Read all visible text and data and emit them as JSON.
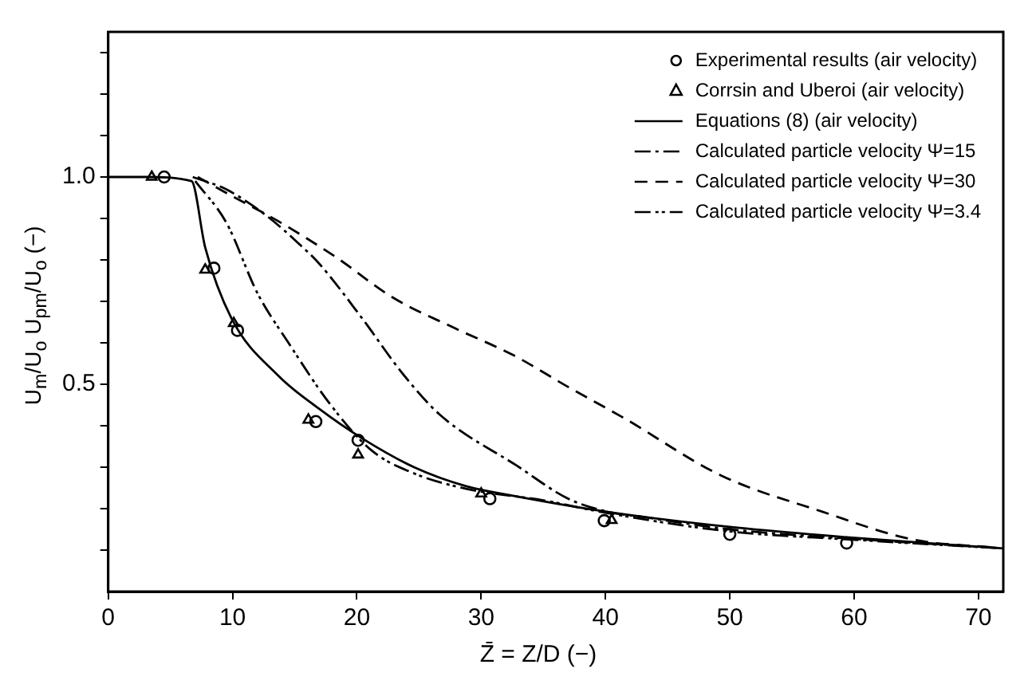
{
  "chart_data": {
    "type": "line",
    "xlabel": "Z̄ = Z/D (−)",
    "ylabel": "U$_{m}$/U$_{o}$   U$_{pm}$/U$_{o}$ (−)",
    "xlim": [
      0,
      72
    ],
    "xticks": [
      0,
      10,
      20,
      30,
      40,
      50,
      60,
      70
    ],
    "ylim": [
      0,
      1.35
    ],
    "yticks": [
      {
        "value": 0.1,
        "label": null
      },
      {
        "value": 0.2,
        "label": null
      },
      {
        "value": 0.3,
        "label": null
      },
      {
        "value": 0.4,
        "label": null
      },
      0.5,
      {
        "value": 0.6,
        "label": null
      },
      {
        "value": 0.7,
        "label": null
      },
      {
        "value": 0.8,
        "label": null
      },
      {
        "value": 0.9,
        "label": null
      },
      {
        "value": 1,
        "label": "1.0"
      },
      {
        "value": 1.1,
        "label": null
      },
      {
        "value": 1.2,
        "label": null
      },
      {
        "value": 1.3,
        "label": null
      }
    ],
    "grid": false,
    "legend": "top right",
    "series": [
      {
        "name": "Experimental results (air velocity)",
        "type": "scatter",
        "marker": "circle",
        "color": "#000000",
        "x": [
          4.5,
          8.5,
          10.4,
          16.7,
          20.1,
          30.7,
          39.9,
          50,
          59.4
        ],
        "values": [
          1.0,
          0.78,
          0.63,
          0.41,
          0.365,
          0.224,
          0.171,
          0.138,
          0.117
        ]
      },
      {
        "name": "Corrsin and Uberoi (air velocity)",
        "type": "scatter",
        "marker": "triangle",
        "color": "#000000",
        "x": [
          3.5,
          7.8,
          10.1,
          16.1,
          20.1,
          30,
          40.5
        ],
        "values": [
          1.0,
          0.776,
          0.647,
          0.414,
          0.33,
          0.236,
          0.172
        ]
      },
      {
        "name": "Equations (8) (air velocity)",
        "line_style": "solid",
        "color": "#000000",
        "x": [
          0,
          3,
          6.7,
          7.8,
          9.9,
          13.7,
          17,
          20.4,
          24.6,
          28.8,
          32.4,
          40,
          50,
          59.4,
          72
        ],
        "values": [
          1.0,
          1.0,
          0.99,
          0.83,
          0.66,
          0.52,
          0.44,
          0.37,
          0.3,
          0.254,
          0.232,
          0.193,
          0.156,
          0.131,
          0.104
        ]
      },
      {
        "name": "Calculated particle velocity Ψ=15",
        "line_style": "dashdot",
        "color": "#000000",
        "x": [
          6.8,
          9.5,
          12.8,
          15.3,
          17,
          20.4,
          23.7,
          26.7,
          32.9,
          37,
          40.1,
          43,
          50,
          60,
          71.6
        ],
        "values": [
          1.0,
          0.97,
          0.905,
          0.84,
          0.79,
          0.66,
          0.525,
          0.426,
          0.303,
          0.224,
          0.193,
          0.18,
          0.15,
          0.127,
          0.105
        ]
      },
      {
        "name": "Calculated particle velocity Ψ=30",
        "line_style": "dashed",
        "color": "#000000",
        "x": [
          7.2,
          9.9,
          13.7,
          18.3,
          22.9,
          27.9,
          32.6,
          37.2,
          41.4,
          49.3,
          57.4,
          64.8,
          71.3
        ],
        "values": [
          1.0,
          0.955,
          0.893,
          0.807,
          0.709,
          0.635,
          0.57,
          0.49,
          0.42,
          0.28,
          0.193,
          0.125,
          0.106
        ]
      },
      {
        "name": "Calculated particle velocity Ψ=3.4",
        "line_style": "dashdotdot",
        "color": "#000000",
        "x": [
          7,
          9.5,
          12,
          14.5,
          17.9,
          21.2,
          24.6,
          28.8,
          35,
          40,
          50,
          60,
          70.8
        ],
        "values": [
          0.99,
          0.89,
          0.72,
          0.6,
          0.45,
          0.34,
          0.285,
          0.248,
          0.22,
          0.19,
          0.145,
          0.125,
          0.106
        ]
      }
    ]
  }
}
